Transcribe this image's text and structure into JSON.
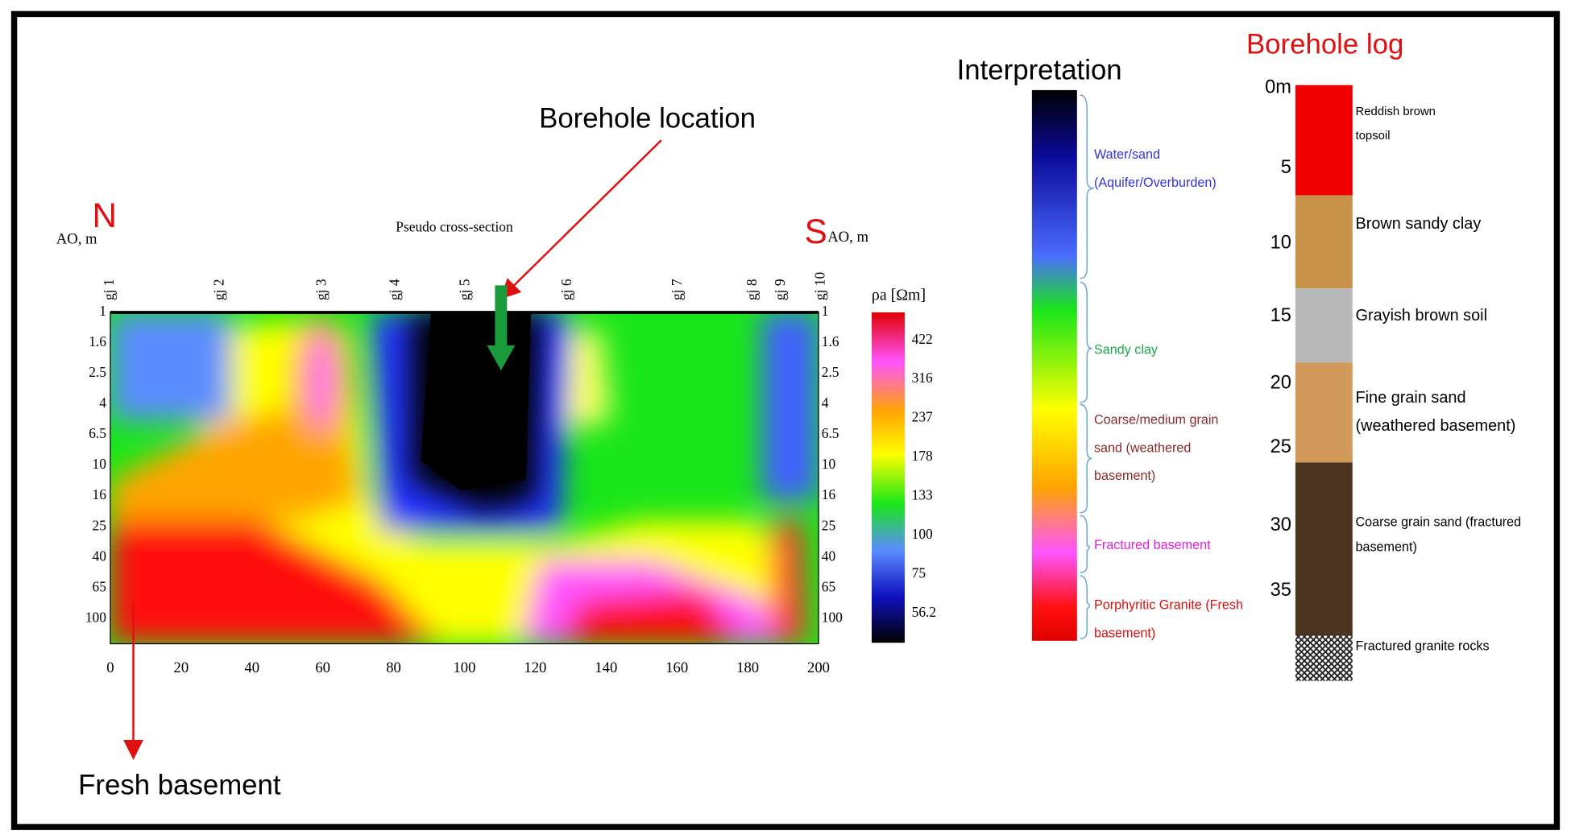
{
  "labels": {
    "borehole_location": "Borehole location",
    "fresh_basement": "Fresh basement",
    "north": "N",
    "south": "S",
    "interpretation": "Interpretation",
    "borehole_log_title": "Borehole log"
  },
  "section": {
    "title": "Pseudo cross-section",
    "left_axis_label": "AO, m",
    "right_axis_label": "AO, m",
    "stations": [
      "gj 1",
      "gj 2",
      "gj 3",
      "gj 4",
      "gj 5",
      "gj 6",
      "gj 7",
      "gj 8",
      "gj 9",
      "gj 10"
    ],
    "depth_ticks": [
      1,
      1.6,
      2.5,
      4,
      6.5,
      10,
      16,
      25,
      40,
      65,
      100
    ],
    "x_ticks": [
      0,
      20,
      40,
      60,
      80,
      100,
      120,
      140,
      160,
      180,
      200
    ],
    "colorbar_label": "ρa [Ωm]",
    "colorbar_ticks": [
      422,
      316,
      237,
      178,
      133,
      100,
      75,
      56.2
    ]
  },
  "interpretation": [
    {
      "lines": [
        "Water/sand",
        "(Aquifer/Overburden)"
      ]
    },
    {
      "lines": [
        "Sandy clay"
      ]
    },
    {
      "lines": [
        "Coarse/medium grain",
        "sand (weathered",
        "basement)"
      ]
    },
    {
      "lines": [
        "Fractured basement"
      ]
    },
    {
      "lines": [
        "Porphyritic Granite (Fresh",
        "basement)"
      ]
    }
  ],
  "borehole_log": {
    "depth_ticks": [
      "0m",
      5,
      10,
      15,
      20,
      25,
      30,
      35
    ],
    "layers": [
      {
        "lines": [
          "Reddish brown",
          "topsoil"
        ]
      },
      {
        "lines": [
          "Brown sandy clay"
        ]
      },
      {
        "lines": [
          "Grayish brown soil"
        ]
      },
      {
        "lines": [
          "Fine grain sand",
          "(weathered basement)"
        ]
      },
      {
        "lines": [
          "Coarse grain sand (fractured",
          "basement)"
        ]
      },
      {
        "lines": [
          "Fractured granite rocks"
        ]
      }
    ]
  }
}
